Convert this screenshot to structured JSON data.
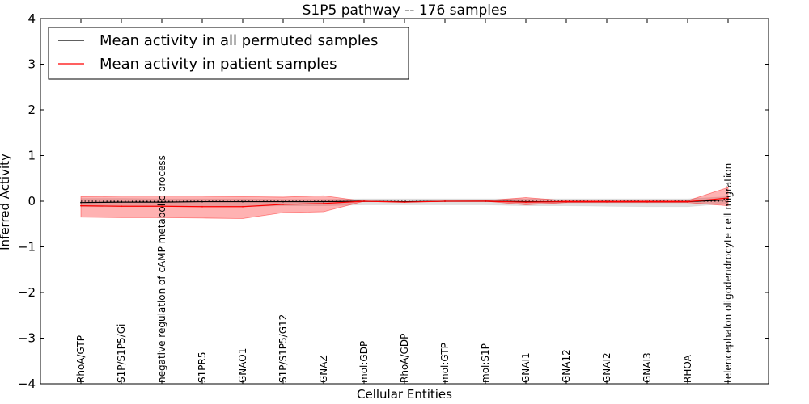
{
  "chart_data": {
    "type": "line",
    "title": "S1P5 pathway -- 176 samples",
    "xlabel": "Cellular Entities",
    "ylabel": "Inferred Activity",
    "ylim": [
      -4,
      4
    ],
    "yticks": [
      -4,
      -3,
      -2,
      -1,
      0,
      1,
      2,
      3,
      4
    ],
    "ytick_labels": [
      "−4",
      "−3",
      "−2",
      "−1",
      "0",
      "1",
      "2",
      "3",
      "4"
    ],
    "categories": [
      "RhoA/GTP",
      "S1P/S1P5/Gi",
      "negative regulation of cAMP metabolic process",
      "S1PR5",
      "GNAO1",
      "S1P/S1P5/G12",
      "GNAZ",
      "mol:GDP",
      "RhoA/GDP",
      "mol:GTP",
      "mol:S1P",
      "GNAI1",
      "GNA12",
      "GNAI2",
      "GNAI3",
      "RHOA",
      "telencephalon oligodendrocyte cell migration"
    ],
    "series": [
      {
        "name": "Mean activity in all permuted samples",
        "color": "#000000",
        "style": "solid",
        "values": [
          -0.03,
          -0.02,
          -0.02,
          -0.01,
          -0.01,
          -0.01,
          -0.01,
          0.0,
          -0.01,
          0.0,
          0.0,
          -0.01,
          -0.01,
          -0.01,
          -0.01,
          -0.01,
          0.03
        ],
        "band_low": [
          -0.12,
          -0.12,
          -0.12,
          -0.11,
          -0.12,
          -0.1,
          -0.1,
          -0.08,
          -0.08,
          -0.08,
          -0.08,
          -0.1,
          -0.1,
          -0.11,
          -0.12,
          -0.12,
          -0.05
        ],
        "band_high": [
          0.06,
          0.06,
          0.05,
          0.05,
          0.05,
          0.04,
          0.04,
          0.05,
          0.05,
          0.05,
          0.05,
          0.05,
          0.05,
          0.05,
          0.05,
          0.05,
          0.1
        ],
        "band_color": "#bbbbbb"
      },
      {
        "name": "Mean activity in patient samples",
        "color": "#ff0000",
        "style": "solid",
        "values": [
          -0.1,
          -0.11,
          -0.11,
          -0.12,
          -0.12,
          -0.07,
          -0.05,
          0.0,
          -0.02,
          0.0,
          0.0,
          -0.02,
          -0.01,
          -0.01,
          -0.01,
          -0.01,
          0.07
        ],
        "band_low": [
          -0.35,
          -0.36,
          -0.36,
          -0.37,
          -0.38,
          -0.25,
          -0.23,
          0.0,
          -0.02,
          0.0,
          0.0,
          -0.08,
          -0.03,
          -0.03,
          -0.03,
          -0.03,
          -0.1
        ],
        "band_high": [
          0.1,
          0.11,
          0.11,
          0.11,
          0.1,
          0.09,
          0.12,
          0.0,
          -0.01,
          0.0,
          0.01,
          0.08,
          0.01,
          0.01,
          0.01,
          0.01,
          0.3
        ],
        "band_color": "#ff0000"
      }
    ],
    "reference_line": {
      "y": 0,
      "style": "dotted",
      "color": "#000000"
    },
    "legend": {
      "position": "top-left",
      "entries": [
        "Mean activity in all permuted samples",
        "Mean activity in patient samples"
      ]
    }
  }
}
